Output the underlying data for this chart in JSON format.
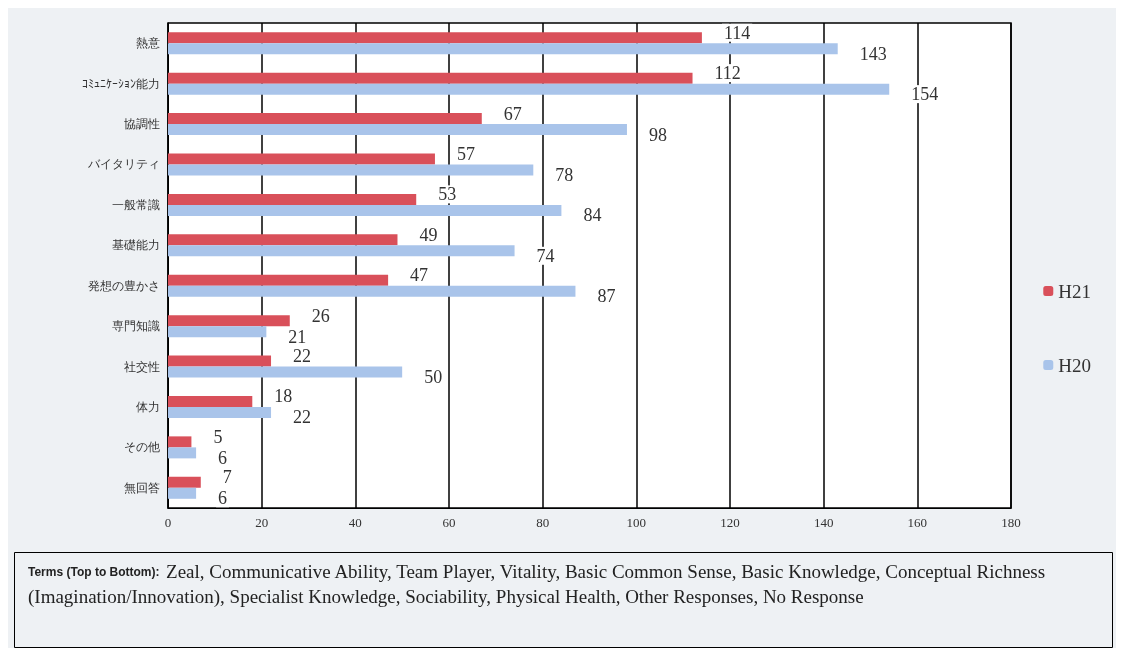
{
  "chart_data": {
    "type": "bar",
    "orientation": "horizontal",
    "categories": [
      "熱意",
      "ｺﾐｭﾆｹｰｼｮﾝ能力",
      "協調性",
      "バイタリティ",
      "一般常識",
      "基礎能力",
      "発想の豊かさ",
      "専門知識",
      "社交性",
      "体力",
      "その他",
      "無回答"
    ],
    "series": [
      {
        "name": "H21",
        "color": "#d9505a",
        "values": [
          114,
          112,
          67,
          57,
          53,
          49,
          47,
          26,
          22,
          18,
          5,
          7
        ]
      },
      {
        "name": "H20",
        "color": "#a9c4ea",
        "values": [
          143,
          154,
          98,
          78,
          84,
          74,
          87,
          21,
          50,
          22,
          6,
          6
        ]
      }
    ],
    "xlim": [
      0,
      180
    ],
    "xticks": [
      0,
      20,
      40,
      60,
      80,
      100,
      120,
      140,
      160,
      180
    ],
    "grid": "x",
    "legend": "right",
    "data_labels": true,
    "annotations": [
      "Terms (Top to Bottom): Zeal, Communicative Ability, Team Player, Vitality, Basic Common Sense, Basic Knowledge, Conceptual Richness (Imagination/Innovation), Specialist Knowledge, Sociability, Physical Health, Other Responses, No Response"
    ]
  }
}
